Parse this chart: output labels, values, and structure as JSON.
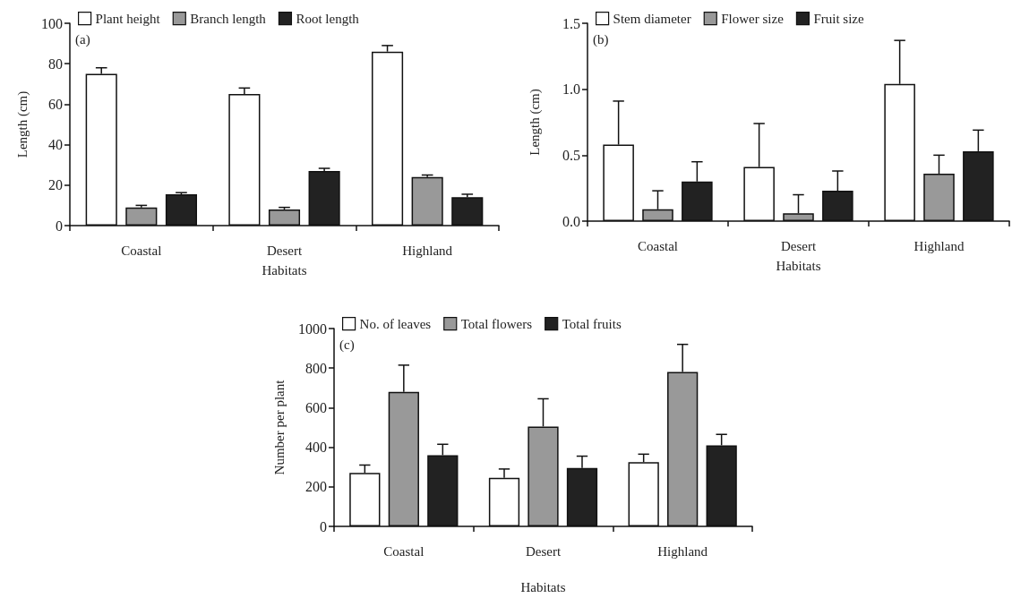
{
  "chart_data": [
    {
      "type": "bar",
      "xlabel": "Habitats",
      "ylabel": "Length (cm)",
      "annotations": [
        "(a)"
      ],
      "categories": [
        "Coastal",
        "Desert",
        "Highland"
      ],
      "ylim": [
        0,
        100
      ],
      "yticks": [
        0,
        20,
        40,
        60,
        80,
        100
      ],
      "grid": false,
      "legend": "top left",
      "series": [
        {
          "name": "Plant height",
          "color": "#ffffff",
          "values": [
            75,
            65,
            86
          ],
          "errors": [
            [
              75,
              78
            ],
            [
              65,
              68
            ],
            [
              86,
              89
            ]
          ]
        },
        {
          "name": "Branch length",
          "color": "#999999",
          "values": [
            9,
            8,
            24
          ],
          "errors": [
            [
              9,
              10
            ],
            [
              8,
              9
            ],
            [
              24,
              25
            ]
          ]
        },
        {
          "name": "Root length",
          "color": "#222222",
          "values": [
            15.5,
            27,
            14
          ],
          "errors": [
            [
              15.5,
              16.3
            ],
            [
              27,
              28.3
            ],
            [
              14,
              15.5
            ]
          ]
        }
      ]
    },
    {
      "type": "bar",
      "xlabel": "Habitats",
      "ylabel": "Length (cm)",
      "annotations": [
        "(b)"
      ],
      "categories": [
        "Coastal",
        "Desert",
        "Highland"
      ],
      "ylim": [
        0,
        1.5
      ],
      "yticks": [
        {
          "value": 0,
          "label": "0.0"
        },
        {
          "value": 0.5,
          "label": "0.5"
        },
        {
          "value": 1,
          "label": "1.0"
        },
        {
          "value": 1.5,
          "label": "1.5"
        }
      ],
      "grid": false,
      "legend": "top left",
      "series": [
        {
          "name": "Stem diameter",
          "color": "#ffffff",
          "values": [
            0.58,
            0.41,
            1.04
          ],
          "errors": [
            [
              0.58,
              0.91
            ],
            [
              0.41,
              0.74
            ],
            [
              1.04,
              1.37
            ]
          ]
        },
        {
          "name": "Flower size",
          "color": "#999999",
          "values": [
            0.09,
            0.06,
            0.36
          ],
          "errors": [
            [
              0.09,
              0.23
            ],
            [
              0.06,
              0.2
            ],
            [
              0.36,
              0.5
            ]
          ]
        },
        {
          "name": "Fruit size",
          "color": "#222222",
          "values": [
            0.3,
            0.23,
            0.53
          ],
          "errors": [
            [
              0.3,
              0.45
            ],
            [
              0.23,
              0.38
            ],
            [
              0.53,
              0.69
            ]
          ]
        }
      ]
    },
    {
      "type": "bar",
      "xlabel": "Habitats",
      "ylabel": "Number per plant",
      "annotations": [
        "(c)"
      ],
      "categories": [
        "Coastal",
        "Desert",
        "Highland"
      ],
      "ylim": [
        0,
        1000
      ],
      "yticks": [
        0,
        200,
        400,
        600,
        800,
        1000
      ],
      "grid": false,
      "legend": "top left",
      "series": [
        {
          "name": "No. of leaves",
          "color": "#ffffff",
          "values": [
            270,
            245,
            325
          ],
          "errors": [
            [
              270,
              310
            ],
            [
              245,
              290
            ],
            [
              325,
              365
            ]
          ]
        },
        {
          "name": "Total flowers",
          "color": "#999999",
          "values": [
            680,
            505,
            780
          ],
          "errors": [
            [
              680,
              815
            ],
            [
              505,
              645
            ],
            [
              780,
              920
            ]
          ]
        },
        {
          "name": "Total fruits",
          "color": "#222222",
          "values": [
            360,
            295,
            410
          ],
          "errors": [
            [
              360,
              415
            ],
            [
              295,
              355
            ],
            [
              410,
              465
            ]
          ]
        }
      ]
    }
  ]
}
